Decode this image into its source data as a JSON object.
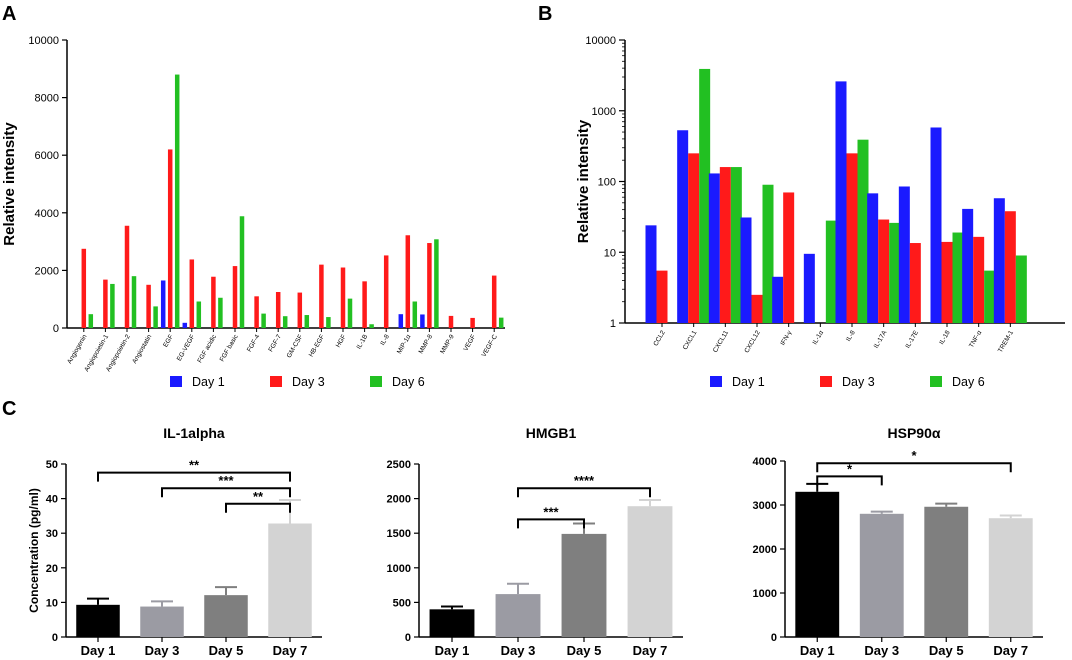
{
  "panels": {
    "a": "A",
    "b": "B",
    "c": "C"
  },
  "colors": {
    "day1": "#1a1aff",
    "day3": "#ff1a1a",
    "day6": "#22c022"
  },
  "legend": [
    "Day 1",
    "Day 3",
    "Day 6"
  ],
  "chart_data": [
    {
      "id": "A",
      "type": "bar",
      "ylabel": "Relative intensity",
      "ylim": [
        0,
        10000
      ],
      "yticks": [
        "0",
        "2000",
        "4000",
        "6000",
        "8000",
        "10000"
      ],
      "categories": [
        "Angiogenin",
        "Angiopoietin-1",
        "Angiopoietin-2",
        "Angiostatin",
        "EGF",
        "EG-VEGF",
        "FGF acidic",
        "FGF basic",
        "FGF-4",
        "FGF-7",
        "GM-CSF",
        "HB-EGF",
        "HGF",
        "IL-1B",
        "IL-8",
        "MIP-1α",
        "MMP-8",
        "MMP-9",
        "VEGF",
        "VEGF-C"
      ],
      "series": [
        {
          "name": "Day 1",
          "values": [
            0,
            0,
            0,
            0,
            1650,
            180,
            0,
            0,
            0,
            0,
            0,
            0,
            0,
            0,
            0,
            480,
            470,
            0,
            0,
            0
          ]
        },
        {
          "name": "Day 3",
          "values": [
            2750,
            1680,
            3550,
            1500,
            6200,
            2380,
            1780,
            2150,
            1100,
            1250,
            1230,
            2200,
            2100,
            1620,
            2520,
            3220,
            2950,
            420,
            350,
            1820
          ]
        },
        {
          "name": "Day 6",
          "values": [
            480,
            1530,
            1800,
            750,
            8800,
            920,
            1050,
            3880,
            500,
            410,
            450,
            380,
            1020,
            130,
            0,
            920,
            3080,
            0,
            0,
            360
          ]
        }
      ],
      "legend_position": "bottom"
    },
    {
      "id": "B",
      "type": "bar",
      "yscale": "log",
      "ylabel": "Relative intensity",
      "ylim": [
        1,
        10000
      ],
      "yticks": [
        "1",
        "10",
        "100",
        "1000",
        "10000"
      ],
      "categories": [
        "CCL2",
        "CXCL1",
        "CXCL11",
        "CXCL12",
        "IFN-γ",
        "IL-1α",
        "IL-8",
        "IL-17A",
        "IL-17E",
        "IL-18",
        "TNF-α",
        "TREM-1"
      ],
      "series": [
        {
          "name": "Day 1",
          "values": [
            24,
            530,
            130,
            31,
            4.5,
            9.5,
            2600,
            68,
            85,
            580,
            41,
            58
          ]
        },
        {
          "name": "Day 3",
          "values": [
            5.5,
            250,
            160,
            2.5,
            70,
            0,
            250,
            29,
            13.5,
            14,
            16.5,
            38
          ]
        },
        {
          "name": "Day 6",
          "values": [
            0,
            3900,
            160,
            90,
            0,
            28,
            390,
            26,
            0,
            19,
            5.5,
            9
          ]
        }
      ],
      "legend_position": "bottom"
    },
    {
      "id": "C1",
      "type": "bar",
      "title": "IL-1alpha",
      "ylabel": "Concentration (pg/ml)",
      "ylim": [
        0,
        50
      ],
      "yticks": [
        "0",
        "10",
        "20",
        "30",
        "40",
        "50"
      ],
      "categories": [
        "Day 1",
        "Day 3",
        "Day 5",
        "Day 7"
      ],
      "values": [
        9.3,
        8.8,
        12.1,
        32.8
      ],
      "errors": [
        1.8,
        1.5,
        2.3,
        6.8
      ],
      "significance": [
        {
          "from": 0,
          "to": 3,
          "label": "**",
          "y": 47.5
        },
        {
          "from": 1,
          "to": 3,
          "label": "***",
          "y": 43
        },
        {
          "from": 2,
          "to": 3,
          "label": "**",
          "y": 38.5
        }
      ]
    },
    {
      "id": "C2",
      "type": "bar",
      "title": "HMGB1",
      "ylabel": "",
      "ylim": [
        0,
        2500
      ],
      "yticks": [
        "0",
        "500",
        "1000",
        "1500",
        "2000",
        "2500"
      ],
      "categories": [
        "Day 1",
        "Day 3",
        "Day 5",
        "Day 7"
      ],
      "values": [
        400,
        620,
        1490,
        1890
      ],
      "errors": [
        40,
        150,
        150,
        90
      ],
      "significance": [
        {
          "from": 1,
          "to": 2,
          "label": "***",
          "y": 1700
        },
        {
          "from": 1,
          "to": 3,
          "label": "****",
          "y": 2150
        }
      ]
    },
    {
      "id": "C3",
      "type": "bar",
      "title": "HSP90α",
      "ylabel": "",
      "ylim": [
        0,
        4000
      ],
      "yticks": [
        "0",
        "1000",
        "2000",
        "3000",
        "4000"
      ],
      "categories": [
        "Day 1",
        "Day 3",
        "Day 5",
        "Day 7"
      ],
      "values": [
        3300,
        2800,
        2960,
        2700
      ],
      "errors": [
        180,
        50,
        70,
        60
      ],
      "significance": [
        {
          "from": 0,
          "to": 1,
          "label": "*",
          "y": 3650
        },
        {
          "from": 0,
          "to": 3,
          "label": "*",
          "y": 3950
        }
      ]
    }
  ]
}
